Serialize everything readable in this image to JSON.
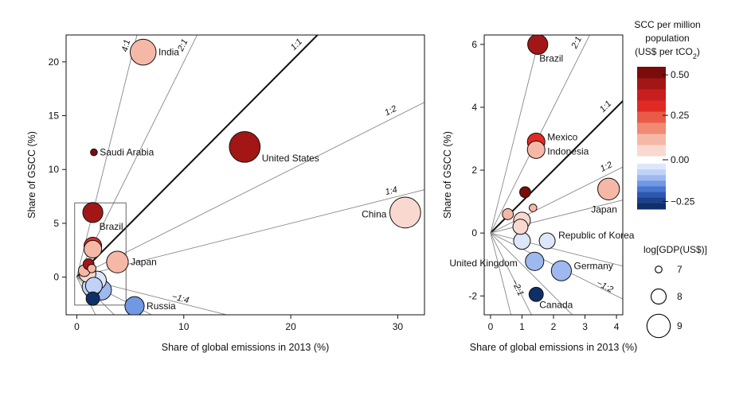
{
  "chart_data": [
    {
      "type": "scatter",
      "panel": "left",
      "xlabel": "Share of global emissions in 2013 (%)",
      "ylabel": "Share of GSCC (%)",
      "xlim": [
        -1,
        32.5
      ],
      "ylim": [
        -3.5,
        22.5
      ],
      "xticks": [
        0,
        10,
        20,
        30
      ],
      "yticks": [
        0,
        5,
        10,
        15,
        20
      ],
      "points": [
        {
          "label": "India",
          "x": 6.2,
          "y": 20.9,
          "scc": 0.1,
          "gdp": 9.3
        },
        {
          "label": "United States",
          "x": 15.7,
          "y": 12.1,
          "scc": 0.4,
          "gdp": 9.9
        },
        {
          "label": "Saudi Arabia",
          "x": 1.6,
          "y": 11.6,
          "scc": 0.52,
          "gdp": 7.0
        },
        {
          "label": "China",
          "x": 30.7,
          "y": 6.0,
          "scc": 0.02,
          "gdp": 9.9
        },
        {
          "label": "Brazil",
          "x": 1.5,
          "y": 6.0,
          "scc": 0.38,
          "gdp": 8.6
        },
        {
          "label": "Japan",
          "x": 3.8,
          "y": 1.4,
          "scc": 0.07,
          "gdp": 8.8
        },
        {
          "label": "Russia",
          "x": 5.4,
          "y": -2.7,
          "scc": -0.12,
          "gdp": 8.5
        },
        {
          "label": "",
          "x": 1.5,
          "y": 2.9,
          "scc": 0.3,
          "gdp": 8.3
        },
        {
          "label": "",
          "x": 1.5,
          "y": 2.6,
          "scc": 0.12,
          "gdp": 8.3
        },
        {
          "label": "",
          "x": 1.1,
          "y": 1.2,
          "scc": 0.42,
          "gdp": 7.5
        },
        {
          "label": "",
          "x": 0.7,
          "y": 0.6,
          "scc": 0.08,
          "gdp": 7.6
        },
        {
          "label": "",
          "x": 1.4,
          "y": 0.8,
          "scc": 0.09,
          "gdp": 7.2
        },
        {
          "label": "",
          "x": 1.0,
          "y": 0.3,
          "scc": 0.05,
          "gdp": 8.2
        },
        {
          "label": "",
          "x": 1.9,
          "y": -0.3,
          "scc": -0.01,
          "gdp": 8.4
        },
        {
          "label": "",
          "x": 1.6,
          "y": -0.8,
          "scc": -0.07,
          "gdp": 8.2
        },
        {
          "label": "",
          "x": 1.4,
          "y": -0.9,
          "scc": -0.06,
          "gdp": 8.5
        },
        {
          "label": "",
          "x": 2.3,
          "y": -1.2,
          "scc": -0.1,
          "gdp": 8.6
        },
        {
          "label": "",
          "x": 1.5,
          "y": -2.0,
          "scc": -0.27,
          "gdp": 7.8
        }
      ],
      "ratio_lines": [
        {
          "label": "4:1",
          "slope": 4
        },
        {
          "label": "2:1",
          "slope": 2
        },
        {
          "label": "1:1",
          "slope": 1
        },
        {
          "label": "1:2",
          "slope": 0.5
        },
        {
          "label": "1:4",
          "slope": 0.25
        },
        {
          "label": "−1:4",
          "slope": -0.25
        },
        {
          "label": "",
          "slope": -0.5
        },
        {
          "label": "",
          "slope": -1
        },
        {
          "label": "",
          "slope": -2
        }
      ],
      "inset_box": {
        "x": [
          -0.2,
          4.6
        ],
        "y": [
          -2.6,
          6.9
        ]
      }
    },
    {
      "type": "scatter",
      "panel": "right",
      "xlabel": "Share of global emissions in 2013 (%)",
      "ylabel": "Share of GSCC (%)",
      "xlim": [
        -0.2,
        4.2
      ],
      "ylim": [
        -2.6,
        6.3
      ],
      "xticks": [
        0,
        1,
        2,
        3,
        4
      ],
      "yticks": [
        -2,
        0,
        2,
        4,
        6
      ],
      "points": [
        {
          "label": "Brazil",
          "x": 1.5,
          "y": 6.0,
          "scc": 0.38,
          "gdp": 8.6
        },
        {
          "label": "Mexico",
          "x": 1.45,
          "y": 2.9,
          "scc": 0.3,
          "gdp": 8.3
        },
        {
          "label": "Indonesia",
          "x": 1.45,
          "y": 2.65,
          "scc": 0.12,
          "gdp": 8.3
        },
        {
          "label": "",
          "x": 1.1,
          "y": 1.3,
          "scc": 0.45,
          "gdp": 7.5
        },
        {
          "label": "Japan",
          "x": 3.75,
          "y": 1.4,
          "scc": 0.07,
          "gdp": 8.8
        },
        {
          "label": "",
          "x": 0.55,
          "y": 0.6,
          "scc": 0.1,
          "gdp": 7.5
        },
        {
          "label": "",
          "x": 1.0,
          "y": 0.4,
          "scc": 0.05,
          "gdp": 8.2
        },
        {
          "label": "",
          "x": 1.35,
          "y": 0.8,
          "scc": 0.12,
          "gdp": 7.1
        },
        {
          "label": "",
          "x": 0.95,
          "y": 0.2,
          "scc": 0.02,
          "gdp": 8.0
        },
        {
          "label": "Republic of Korea",
          "x": 1.8,
          "y": -0.25,
          "scc": -0.03,
          "gdp": 8.1
        },
        {
          "label": "",
          "x": 1.0,
          "y": -0.25,
          "scc": -0.02,
          "gdp": 8.2
        },
        {
          "label": "United Kingdom",
          "x": 1.4,
          "y": -0.9,
          "scc": -0.08,
          "gdp": 8.4
        },
        {
          "label": "Germany",
          "x": 2.25,
          "y": -1.2,
          "scc": -0.1,
          "gdp": 8.6
        },
        {
          "label": "Canada",
          "x": 1.45,
          "y": -1.95,
          "scc": -0.28,
          "gdp": 7.9
        }
      ],
      "ratio_lines": [
        {
          "label": "2:1",
          "slope": 2
        },
        {
          "label": "1:1",
          "slope": 1
        },
        {
          "label": "1:2",
          "slope": 0.5
        },
        {
          "label": "−1:2",
          "slope": -0.5
        },
        {
          "label": "−2:1",
          "slope": -2
        },
        {
          "label": "",
          "slope": 4
        },
        {
          "label": "",
          "slope": 0.25
        },
        {
          "label": "",
          "slope": -0.25
        },
        {
          "label": "",
          "slope": -1
        },
        {
          "label": "",
          "slope": -4
        }
      ]
    }
  ],
  "legend": {
    "color_title": [
      "SCC per million",
      "population",
      "(US$ per tCO2)"
    ],
    "color_ticks": [
      {
        "label": "0.50",
        "value": 0.5
      },
      {
        "label": "0.25",
        "value": 0.25
      },
      {
        "label": "0.00",
        "value": 0.0
      },
      {
        "label": "−0.25",
        "value": -0.25
      }
    ],
    "color_range": [
      -0.3,
      0.55
    ],
    "size_title": "log[GDP(US$)]",
    "size_entries": [
      {
        "label": "7",
        "value": 7
      },
      {
        "label": "8",
        "value": 8
      },
      {
        "label": "9",
        "value": 9
      }
    ]
  },
  "colors": {
    "line": "#888888",
    "line_one_to_one": "#111111",
    "reds": [
      "#f9d9cf",
      "#f6b8a6",
      "#f08a72",
      "#e95b48",
      "#e02b25",
      "#c71f1f",
      "#a31616",
      "#7a0c0c"
    ],
    "blues": [
      "#dde6fb",
      "#c0d3f7",
      "#9db9f0",
      "#7098e3",
      "#4a76cf",
      "#2d58b0",
      "#1b418b",
      "#0f2f68"
    ]
  }
}
